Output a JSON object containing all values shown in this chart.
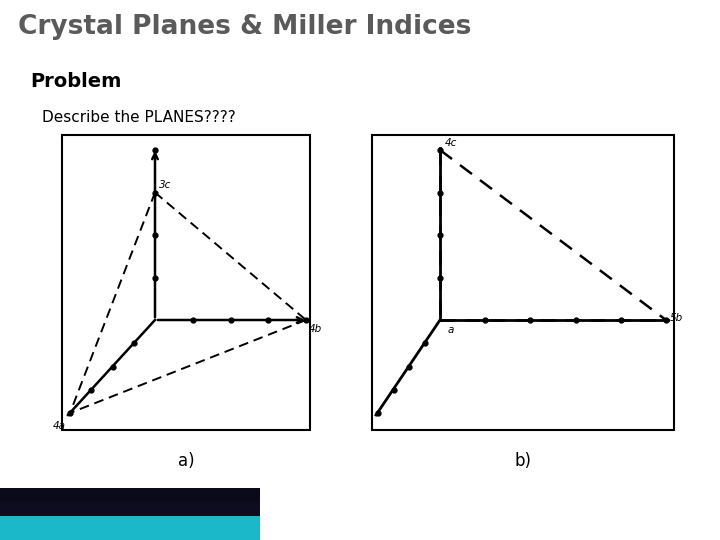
{
  "title": "Crystal Planes & Miller Indices",
  "subtitle": "Problem",
  "describe_text": "Describe the PLANES????",
  "label_a": "a)",
  "label_b": "b)",
  "bg_color": "#ffffff",
  "title_color": "#5a5a5a",
  "text_color": "#000000"
}
